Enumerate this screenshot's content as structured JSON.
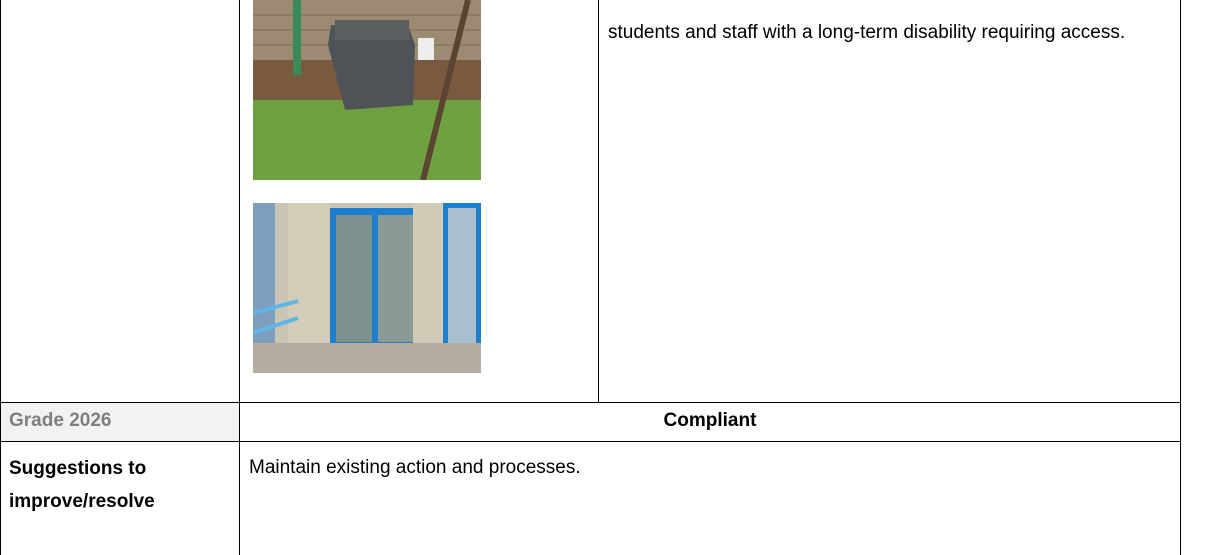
{
  "table": {
    "rows": [
      {
        "description": "students and staff with a long-term disability requiring access."
      },
      {
        "label": "Grade 2026",
        "value": "Compliant"
      },
      {
        "label": "Suggestions to improve/resolve",
        "value": "Maintain existing action and processes."
      }
    ]
  }
}
